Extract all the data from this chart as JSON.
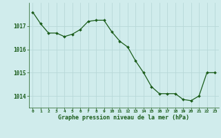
{
  "hours": [
    0,
    1,
    2,
    3,
    4,
    5,
    6,
    7,
    8,
    9,
    10,
    11,
    12,
    13,
    14,
    15,
    16,
    17,
    18,
    19,
    20,
    21,
    22,
    23
  ],
  "pressure": [
    1017.6,
    1017.1,
    1016.7,
    1016.7,
    1016.55,
    1016.65,
    1016.85,
    1017.2,
    1017.25,
    1017.25,
    1016.75,
    1016.35,
    1016.1,
    1015.5,
    1015.0,
    1014.4,
    1014.1,
    1014.1,
    1014.1,
    1013.85,
    1013.8,
    1014.0,
    1015.0,
    1015.0
  ],
  "line_color": "#1a5c1a",
  "marker_color": "#1a5c1a",
  "bg_color": "#d0ecec",
  "grid_color": "#b8d8d8",
  "xlabel": "Graphe pression niveau de la mer (hPa)",
  "xlabel_color": "#1a5c1a",
  "tick_color": "#1a5c1a",
  "ylim": [
    1013.5,
    1018.0
  ],
  "yticks": [
    1014,
    1015,
    1016,
    1017
  ],
  "xticks": [
    0,
    1,
    2,
    3,
    4,
    5,
    6,
    7,
    8,
    9,
    10,
    11,
    12,
    13,
    14,
    15,
    16,
    17,
    18,
    19,
    20,
    21,
    22,
    23
  ]
}
